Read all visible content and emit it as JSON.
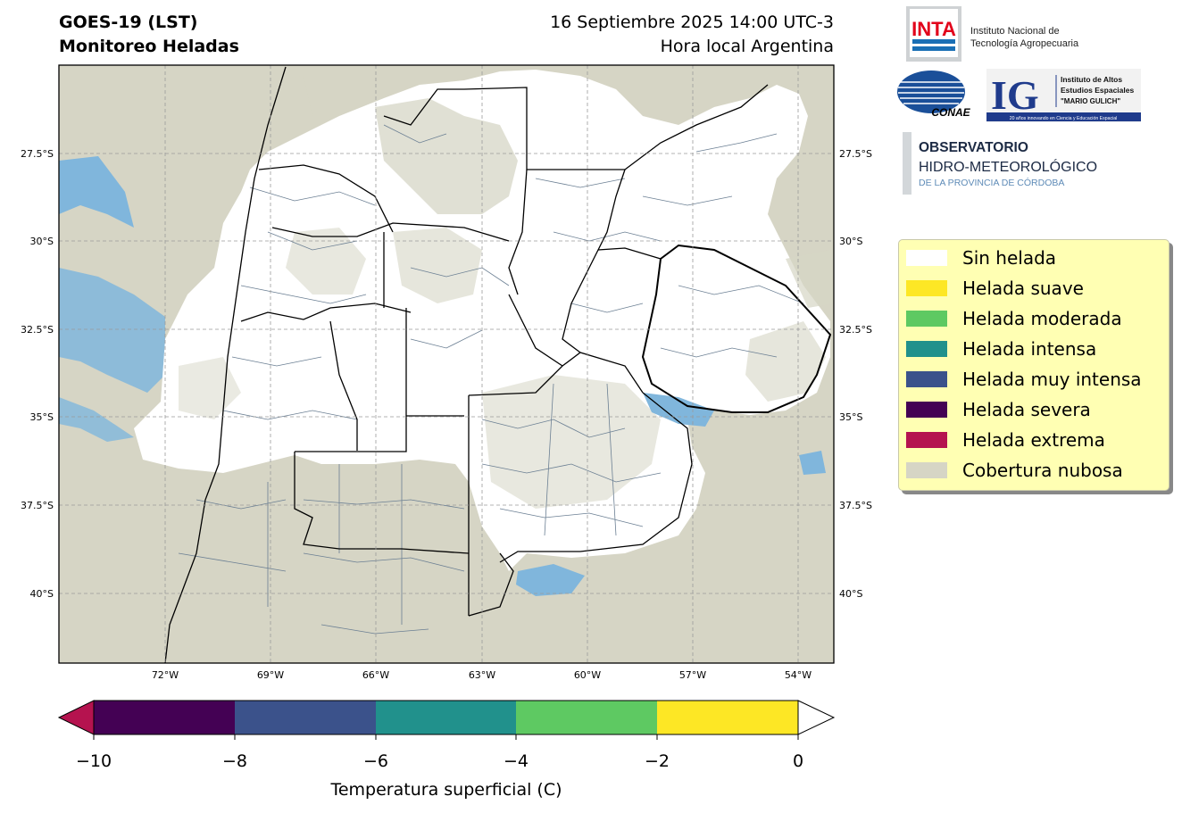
{
  "header": {
    "title_line1": "GOES-19 (LST)",
    "title_line2": "Monitoreo Heladas",
    "date_line": "16 Septiembre 2025 14:00 UTC-3",
    "local_time_line": "Hora local Argentina"
  },
  "map": {
    "lat_labels": [
      "27.5°S",
      "30°S",
      "32.5°S",
      "35°S",
      "37.5°S",
      "40°S"
    ],
    "lon_labels": [
      "72°W",
      "69°W",
      "66°W",
      "63°W",
      "60°W",
      "57°W",
      "54°W"
    ],
    "colors": {
      "no_frost": "#ffffff",
      "cloud": "#d6d5c5",
      "water_blue": "#80b6dc",
      "border": "#000000",
      "department_lines": "#6b7f93"
    }
  },
  "legend": {
    "items": [
      {
        "label": "Sin helada",
        "color": "#ffffff"
      },
      {
        "label": "Helada suave",
        "color": "#fde725"
      },
      {
        "label": "Helada moderada",
        "color": "#5ec962"
      },
      {
        "label": "Helada intensa",
        "color": "#21918c"
      },
      {
        "label": "Helada muy intensa",
        "color": "#3b528b"
      },
      {
        "label": "Helada severa",
        "color": "#440154"
      },
      {
        "label": "Helada extrema",
        "color": "#b5134f"
      },
      {
        "label": "Cobertura nubosa",
        "color": "#d6d5c5"
      }
    ]
  },
  "colorbar": {
    "ticks": [
      "−10",
      "−8",
      "−6",
      "−4",
      "−2",
      "0"
    ],
    "label": "Temperatura superficial (C)",
    "segments": [
      "#440154",
      "#3b528b",
      "#21918c",
      "#5ec962",
      "#fde725"
    ],
    "under_color": "#b5134f",
    "over_color": "#ffffff"
  },
  "logos": {
    "inta_abbr": "INTA",
    "inta_name_line1": "Instituto Nacional de",
    "inta_name_line2": "Tecnología Agropecuaria",
    "conae": "CONAE",
    "ig_abbr": "IG",
    "ig_line1": "Instituto de Altos",
    "ig_line2": "Estudios Espaciales",
    "ig_line3": "\"MARIO GULICH\"",
    "ig_tagline": "20 años innovando en Ciencia y Educación Espacial",
    "obs_line1": "OBSERVATORIO",
    "obs_line2": "HIDRO-METEOROLÓGICO",
    "obs_line3": "DE LA PROVINCIA DE CÓRDOBA"
  }
}
